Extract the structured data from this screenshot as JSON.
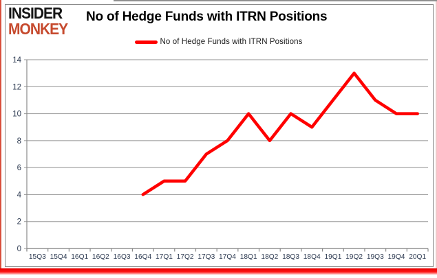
{
  "logo": {
    "line1": "INSIDER",
    "line2": "MONKEY"
  },
  "title": "No of Hedge Funds with ITRN Positions",
  "legend": {
    "label": "No of Hedge Funds with ITRN Positions"
  },
  "colors": {
    "line": "#ff0000",
    "grid": "#a6a6a6",
    "axis_line": "#8a8a8a",
    "axis_text": "#2e3b52",
    "logo_black": "#151515",
    "logo_red": "#c64a2e",
    "accent_bar": "#e60000",
    "frame_border": "#8a8a8a"
  },
  "chart_data": {
    "type": "line",
    "title": "No of Hedge Funds with ITRN Positions",
    "xlabel": "",
    "ylabel": "",
    "ylim": [
      0,
      14
    ],
    "ytick_step": 2,
    "grid": true,
    "legend_position": "top",
    "categories": [
      "15Q3",
      "15Q4",
      "16Q1",
      "16Q2",
      "16Q3",
      "16Q4",
      "17Q1",
      "17Q2",
      "17Q3",
      "17Q4",
      "18Q1",
      "18Q2",
      "18Q3",
      "18Q4",
      "19Q1",
      "19Q2",
      "19Q3",
      "19Q4",
      "20Q1"
    ],
    "series": [
      {
        "name": "No of Hedge Funds with ITRN Positions",
        "color": "#ff0000",
        "values": [
          null,
          null,
          null,
          null,
          null,
          4,
          5,
          5,
          7,
          8,
          10,
          8,
          10,
          9,
          11,
          13,
          11,
          10,
          10
        ]
      }
    ]
  }
}
